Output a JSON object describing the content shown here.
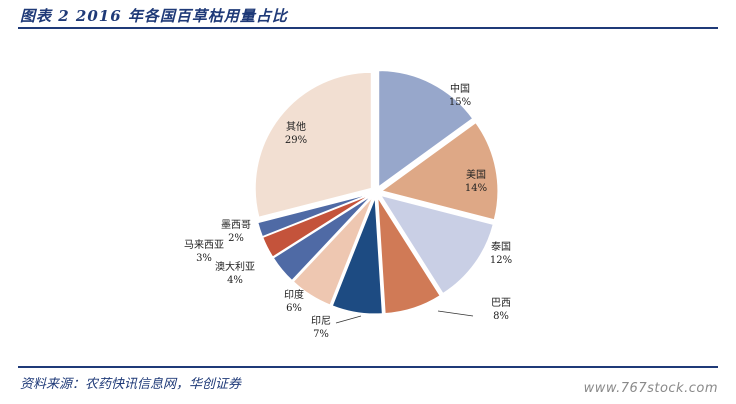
{
  "figure": {
    "title": "图表 2   2016 年各国百草枯用量占比",
    "source": "资料来源：农药快讯信息网，华创证券"
  },
  "watermark": "www.767stock.com",
  "colors": {
    "accent": "#1f3a78"
  },
  "chart_data": {
    "type": "pie",
    "title": "",
    "slices": [
      {
        "label": "中国",
        "value": 15,
        "display": "15%",
        "color": "#97a7cb"
      },
      {
        "label": "美国",
        "value": 14,
        "display": "14%",
        "color": "#dea886"
      },
      {
        "label": "泰国",
        "value": 12,
        "display": "12%",
        "color": "#c9cfe5"
      },
      {
        "label": "巴西",
        "value": 8,
        "display": "8%",
        "color": "#d07a56"
      },
      {
        "label": "印尼",
        "value": 7,
        "display": "7%",
        "color": "#1d4b82"
      },
      {
        "label": "印度",
        "value": 6,
        "display": "6%",
        "color": "#eec7b1"
      },
      {
        "label": "澳大利亚",
        "value": 4,
        "display": "4%",
        "color": "#4f6aa5"
      },
      {
        "label": "马来西亚",
        "value": 3,
        "display": "3%",
        "color": "#c4533b"
      },
      {
        "label": "墨西哥",
        "value": 2,
        "display": "2%",
        "color": "#4f6aa5"
      },
      {
        "label": "其他",
        "value": 29,
        "display": "29%",
        "color": "#f2dfd2"
      }
    ]
  }
}
